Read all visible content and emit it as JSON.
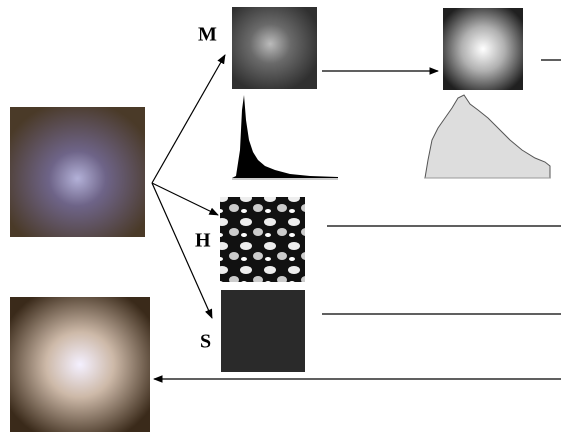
{
  "labels": {
    "m": "M",
    "h": "H",
    "s": "S"
  }
}
